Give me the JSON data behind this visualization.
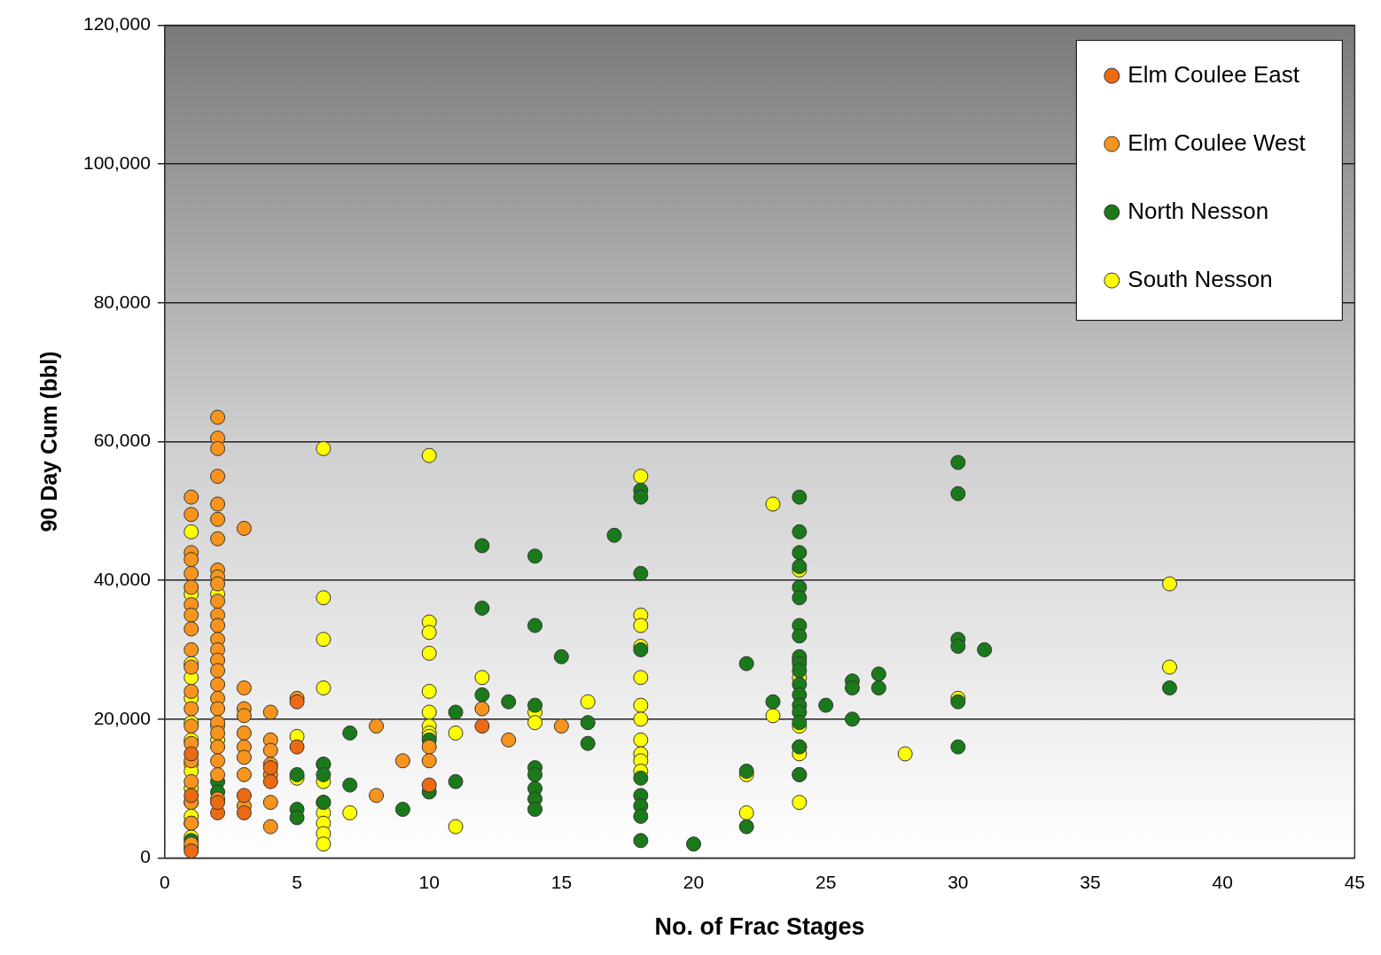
{
  "chart_data": {
    "type": "scatter",
    "xlabel": "No. of Frac Stages",
    "ylabel": "90 Day Cum (bbl)",
    "xlim": [
      0,
      45
    ],
    "xticks": [
      0,
      5,
      10,
      15,
      20,
      25,
      30,
      35,
      40,
      45
    ],
    "ylim": [
      0,
      120000
    ],
    "yticks": [
      0,
      {
        "value": 20000,
        "label": "20,000"
      },
      {
        "value": 40000,
        "label": "40,000"
      },
      {
        "value": 60000,
        "label": "60,000"
      },
      {
        "value": 80000,
        "label": "80,000"
      },
      {
        "value": 100000,
        "label": "100,000"
      },
      {
        "value": 120000,
        "label": "120,000"
      }
    ],
    "grid": "y",
    "legend": "top right",
    "marker": "circle",
    "series": [
      {
        "name": "Elm Coulee East",
        "color": "#ec6a12",
        "x": [
          1,
          1,
          1,
          2,
          2,
          3,
          3,
          4,
          4,
          5,
          5,
          10,
          12
        ],
        "values": [
          1000,
          9000,
          15000,
          6500,
          8000,
          6500,
          9000,
          11000,
          13000,
          16000,
          22500,
          10500,
          19000
        ]
      },
      {
        "name": "Elm Coulee West",
        "color": "#f7941d",
        "x": [
          1,
          1,
          1,
          1,
          1,
          1,
          1,
          1,
          1,
          1,
          1,
          1,
          1,
          1,
          1,
          1,
          1,
          1,
          1,
          1,
          2,
          2,
          2,
          2,
          2,
          2,
          2,
          2,
          2,
          2,
          2,
          2,
          2,
          2,
          2,
          2,
          2,
          2,
          2,
          2,
          2,
          2,
          2,
          2,
          2,
          2,
          3,
          3,
          3,
          3,
          3,
          3,
          3,
          3,
          3,
          4,
          4,
          4,
          4,
          4,
          4,
          4,
          5,
          8,
          8,
          9,
          10,
          10,
          12,
          13,
          15
        ],
        "values": [
          52000,
          49500,
          44000,
          43000,
          41000,
          39000,
          36500,
          35000,
          33000,
          30000,
          27500,
          24000,
          21500,
          19000,
          16500,
          14000,
          11000,
          8000,
          5000,
          2000,
          63500,
          60500,
          59000,
          55000,
          51000,
          48800,
          46000,
          41500,
          40500,
          39500,
          37000,
          35000,
          33500,
          31500,
          30000,
          28500,
          27000,
          25000,
          23000,
          21500,
          19500,
          18000,
          16000,
          14000,
          12000,
          8500,
          47500,
          24500,
          21500,
          20500,
          18000,
          16000,
          14500,
          12000,
          7500,
          21000,
          17000,
          15500,
          13500,
          12000,
          8000,
          4500,
          23000,
          19000,
          9000,
          14000,
          16000,
          14000,
          21500,
          17000,
          19000
        ]
      },
      {
        "name": "North Nesson",
        "color": "#1a7a1a",
        "x": [
          1,
          1,
          2,
          2,
          5,
          5,
          5,
          6,
          6,
          6,
          7,
          7,
          9,
          10,
          10,
          11,
          11,
          12,
          12,
          12,
          13,
          14,
          14,
          14,
          14,
          14,
          14,
          14,
          14,
          15,
          16,
          16,
          17,
          18,
          18,
          18,
          18,
          18,
          18,
          18,
          18,
          18,
          20,
          22,
          22,
          22,
          23,
          24,
          24,
          24,
          24,
          24,
          24,
          24,
          24,
          24,
          24,
          24,
          24,
          24,
          24,
          24,
          24,
          24,
          24,
          25,
          26,
          26,
          26,
          27,
          27,
          30,
          30,
          30,
          30,
          30,
          30,
          31,
          38
        ],
        "values": [
          2500,
          1500,
          11000,
          9500,
          12000,
          7000,
          5800,
          13500,
          12000,
          8000,
          18000,
          10500,
          7000,
          17000,
          9500,
          21000,
          11000,
          45000,
          36000,
          23500,
          22500,
          43500,
          33500,
          22000,
          13000,
          12000,
          10000,
          8500,
          7000,
          29000,
          19500,
          16500,
          46500,
          53000,
          52000,
          41000,
          30000,
          11500,
          9000,
          7500,
          6000,
          2500,
          2000,
          28000,
          12500,
          4500,
          22500,
          52000,
          47000,
          44000,
          42000,
          39000,
          37500,
          33500,
          32000,
          29000,
          28000,
          27000,
          25000,
          23500,
          22000,
          21000,
          19500,
          16000,
          12000,
          22000,
          25500,
          24500,
          20000,
          26500,
          24500,
          57000,
          52500,
          31500,
          30500,
          22500,
          16000,
          30000,
          24500
        ]
      },
      {
        "name": "South Nesson",
        "color": "#ffff00",
        "x": [
          1,
          1,
          1,
          1,
          1,
          1,
          1,
          1,
          1,
          1,
          1,
          1,
          1,
          1,
          2,
          2,
          2,
          5,
          5,
          6,
          6,
          6,
          6,
          6,
          6,
          6,
          6,
          6,
          6,
          6,
          7,
          10,
          10,
          10,
          10,
          10,
          10,
          10,
          10,
          10,
          11,
          11,
          12,
          14,
          14,
          16,
          18,
          18,
          18,
          18,
          18,
          18,
          18,
          18,
          18,
          18,
          18,
          22,
          22,
          23,
          23,
          24,
          24,
          24,
          24,
          24,
          24,
          24,
          24,
          28,
          30,
          38,
          38
        ],
        "values": [
          47000,
          38000,
          28000,
          26000,
          23000,
          19500,
          17000,
          13500,
          12500,
          10000,
          8000,
          6000,
          5000,
          3000,
          38000,
          19000,
          17000,
          17500,
          11500,
          59000,
          37500,
          31500,
          24500,
          13500,
          11000,
          8000,
          6500,
          5000,
          3500,
          2000,
          6500,
          58000,
          34000,
          32500,
          29500,
          24000,
          21000,
          19000,
          18000,
          17500,
          18000,
          4500,
          26000,
          21000,
          19500,
          22500,
          55000,
          35000,
          33500,
          30500,
          26000,
          22000,
          20000,
          17000,
          15000,
          14000,
          12500,
          12000,
          6500,
          51000,
          20500,
          41500,
          28500,
          26000,
          19000,
          16000,
          15000,
          12000,
          8000,
          15000,
          23000,
          39500,
          27500
        ]
      }
    ]
  }
}
